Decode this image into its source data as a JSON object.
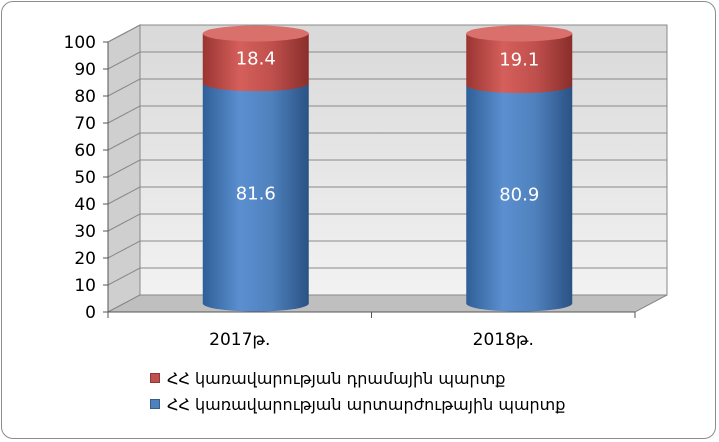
{
  "chart_data": {
    "type": "bar",
    "stacked": true,
    "style": "3d-cylinder",
    "categories": [
      "2017թ.",
      "2018թ."
    ],
    "series": [
      {
        "name": "ՀՀ կառավարության արտարժութային պարտք",
        "values": [
          81.6,
          80.9
        ],
        "color": "#4f81bd"
      },
      {
        "name": "ՀՀ կառավարության դրամային պարտք",
        "values": [
          18.4,
          19.1
        ],
        "color": "#c0504d"
      }
    ],
    "ylim": [
      0,
      100
    ],
    "yticks": [
      0,
      10,
      20,
      30,
      40,
      50,
      60,
      70,
      80,
      90,
      100
    ],
    "grid": true,
    "legend_position": "bottom",
    "legend_order": [
      1,
      0
    ],
    "title": "",
    "xlabel": "",
    "ylabel": ""
  }
}
